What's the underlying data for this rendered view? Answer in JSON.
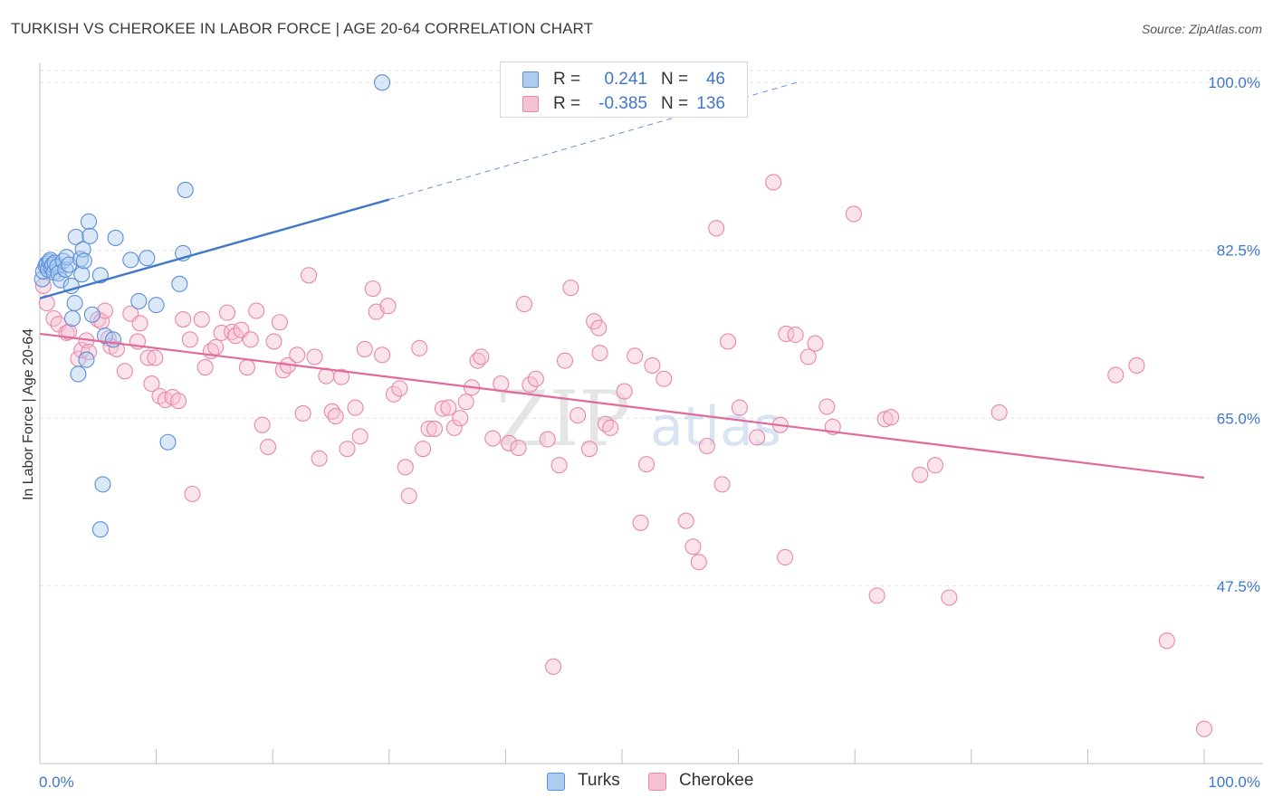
{
  "title": "TURKISH VS CHEROKEE IN LABOR FORCE | AGE 20-64 CORRELATION CHART",
  "source": "Source: ZipAtlas.com",
  "legend_top": [
    {
      "name": "Turks",
      "r_label": "R =",
      "r_value": "0.241",
      "n_label": "N =",
      "n_value": "46",
      "fill": "#aecbf0",
      "stroke": "#5b8fd8"
    },
    {
      "name": "Cherokee",
      "r_label": "R =",
      "r_value": "-0.385",
      "n_label": "N =",
      "n_value": "136",
      "fill": "#f6c1d2",
      "stroke": "#e888a8"
    }
  ],
  "legend_bottom": [
    {
      "label": "Turks",
      "fill": "#aecbf0",
      "stroke": "#5b8fd8"
    },
    {
      "label": "Cherokee",
      "fill": "#f6c1d2",
      "stroke": "#e888a8"
    }
  ],
  "watermark": {
    "zip": "ZIP",
    "atlas": "atlas"
  },
  "colors": {
    "turks": "#3f78c8",
    "cherokee": "#e26a98",
    "axis_text": "#3f78c8"
  },
  "chart_data": {
    "type": "scatter",
    "title": "TURKISH VS CHEROKEE IN LABOR FORCE | AGE 20-64 CORRELATION CHART",
    "xlabel": "",
    "ylabel": "In Labor Force | Age 20-64",
    "xlim": [
      0,
      100
    ],
    "ylim": [
      30.5,
      102
    ],
    "x_tick_labels": [
      "0.0%",
      "100.0%"
    ],
    "y_ticks": [
      47.5,
      65.0,
      82.5,
      100.0
    ],
    "y_tick_labels": [
      "47.5%",
      "65.0%",
      "82.5%",
      "100.0%"
    ],
    "grid": true,
    "legend_placement": "top-center",
    "series": [
      {
        "name": "Turks",
        "color": "#5b8fd8",
        "trend": {
          "x0": 0,
          "y0": 77.5,
          "x1": 30,
          "y1": 87.8,
          "dash_to_x": 65,
          "dash_to_y": 100.0
        },
        "points": [
          [
            0.2,
            79.5
          ],
          [
            0.3,
            80.3
          ],
          [
            0.5,
            80.9
          ],
          [
            0.6,
            81.1
          ],
          [
            0.7,
            80.5
          ],
          [
            0.8,
            81.3
          ],
          [
            0.9,
            81.5
          ],
          [
            1.0,
            80.7
          ],
          [
            1.1,
            81.0
          ],
          [
            1.2,
            80.2
          ],
          [
            1.3,
            81.2
          ],
          [
            1.5,
            80.8
          ],
          [
            1.6,
            80.1
          ],
          [
            1.8,
            79.4
          ],
          [
            2.0,
            81.4
          ],
          [
            2.2,
            80.5
          ],
          [
            2.3,
            81.8
          ],
          [
            2.5,
            81.0
          ],
          [
            2.7,
            78.8
          ],
          [
            2.8,
            75.4
          ],
          [
            3.0,
            77.0
          ],
          [
            3.1,
            83.9
          ],
          [
            3.3,
            69.6
          ],
          [
            3.5,
            81.6
          ],
          [
            3.6,
            80.0
          ],
          [
            3.7,
            82.6
          ],
          [
            3.8,
            81.4
          ],
          [
            4.0,
            71.1
          ],
          [
            4.2,
            85.5
          ],
          [
            4.3,
            84.0
          ],
          [
            4.5,
            75.8
          ],
          [
            5.2,
            79.9
          ],
          [
            5.4,
            58.1
          ],
          [
            5.2,
            53.4
          ],
          [
            5.6,
            73.6
          ],
          [
            6.3,
            73.2
          ],
          [
            6.5,
            83.8
          ],
          [
            7.8,
            81.5
          ],
          [
            8.5,
            77.2
          ],
          [
            9.2,
            81.7
          ],
          [
            10.0,
            76.8
          ],
          [
            11.0,
            62.5
          ],
          [
            12.0,
            79.0
          ],
          [
            12.3,
            82.2
          ],
          [
            12.5,
            88.8
          ],
          [
            29.4,
            100.0
          ]
        ]
      },
      {
        "name": "Cherokee",
        "color": "#e888a8",
        "trend": {
          "x0": 0,
          "y0": 73.8,
          "x1": 100,
          "y1": 58.8
        },
        "points": [
          [
            0.3,
            78.8
          ],
          [
            0.6,
            77.0
          ],
          [
            1.2,
            75.4
          ],
          [
            1.6,
            74.8
          ],
          [
            2.3,
            73.9
          ],
          [
            2.5,
            74.0
          ],
          [
            3.3,
            71.2
          ],
          [
            3.6,
            72.1
          ],
          [
            4.0,
            73.1
          ],
          [
            4.2,
            71.9
          ],
          [
            5.0,
            75.3
          ],
          [
            5.3,
            75.1
          ],
          [
            5.6,
            76.2
          ],
          [
            5.9,
            73.3
          ],
          [
            6.1,
            72.5
          ],
          [
            6.6,
            72.2
          ],
          [
            7.3,
            69.9
          ],
          [
            7.8,
            75.9
          ],
          [
            8.4,
            73.0
          ],
          [
            8.6,
            74.9
          ],
          [
            9.3,
            71.3
          ],
          [
            9.6,
            68.6
          ],
          [
            9.9,
            71.3
          ],
          [
            10.3,
            67.3
          ],
          [
            10.8,
            66.9
          ],
          [
            11.4,
            67.2
          ],
          [
            11.9,
            66.8
          ],
          [
            12.3,
            75.3
          ],
          [
            12.9,
            73.2
          ],
          [
            13.1,
            57.1
          ],
          [
            13.9,
            75.3
          ],
          [
            14.2,
            70.3
          ],
          [
            14.7,
            72.0
          ],
          [
            15.1,
            72.4
          ],
          [
            15.6,
            73.9
          ],
          [
            16.1,
            76.0
          ],
          [
            16.5,
            74.0
          ],
          [
            16.8,
            73.6
          ],
          [
            17.3,
            74.2
          ],
          [
            17.8,
            70.3
          ],
          [
            18.1,
            73.2
          ],
          [
            18.6,
            76.2
          ],
          [
            19.1,
            64.3
          ],
          [
            19.6,
            62.0
          ],
          [
            20.1,
            73.0
          ],
          [
            20.6,
            75.0
          ],
          [
            20.9,
            70.0
          ],
          [
            21.3,
            70.5
          ],
          [
            22.1,
            71.6
          ],
          [
            22.6,
            65.5
          ],
          [
            23.1,
            79.9
          ],
          [
            23.6,
            71.4
          ],
          [
            24.0,
            60.8
          ],
          [
            24.6,
            69.4
          ],
          [
            25.1,
            65.7
          ],
          [
            25.4,
            65.2
          ],
          [
            25.9,
            69.3
          ],
          [
            26.4,
            61.8
          ],
          [
            27.1,
            66.1
          ],
          [
            27.5,
            63.1
          ],
          [
            27.9,
            72.2
          ],
          [
            28.6,
            78.5
          ],
          [
            28.9,
            76.1
          ],
          [
            29.4,
            71.6
          ],
          [
            29.9,
            76.7
          ],
          [
            30.4,
            67.5
          ],
          [
            30.9,
            68.1
          ],
          [
            31.4,
            59.9
          ],
          [
            31.7,
            56.9
          ],
          [
            32.6,
            72.3
          ],
          [
            32.9,
            61.8
          ],
          [
            33.4,
            63.9
          ],
          [
            33.9,
            63.9
          ],
          [
            34.6,
            66.0
          ],
          [
            35.1,
            66.1
          ],
          [
            35.6,
            64.0
          ],
          [
            36.1,
            65.0
          ],
          [
            36.6,
            66.7
          ],
          [
            37.1,
            68.2
          ],
          [
            37.6,
            71.0
          ],
          [
            37.9,
            71.4
          ],
          [
            38.9,
            62.9
          ],
          [
            39.6,
            68.6
          ],
          [
            40.3,
            62.4
          ],
          [
            41.1,
            61.9
          ],
          [
            41.6,
            76.9
          ],
          [
            42.1,
            68.5
          ],
          [
            42.6,
            69.1
          ],
          [
            43.6,
            62.8
          ],
          [
            44.1,
            39.1
          ],
          [
            44.6,
            60.1
          ],
          [
            45.1,
            71.0
          ],
          [
            45.6,
            78.6
          ],
          [
            46.2,
            65.3
          ],
          [
            47.2,
            61.8
          ],
          [
            47.6,
            75.1
          ],
          [
            48.0,
            74.4
          ],
          [
            48.1,
            71.8
          ],
          [
            48.6,
            64.4
          ],
          [
            49.0,
            64.0
          ],
          [
            50.2,
            67.8
          ],
          [
            51.1,
            71.5
          ],
          [
            51.6,
            54.1
          ],
          [
            52.6,
            70.5
          ],
          [
            52.1,
            60.2
          ],
          [
            53.6,
            69.1
          ],
          [
            55.5,
            54.3
          ],
          [
            56.1,
            51.6
          ],
          [
            56.6,
            50.0
          ],
          [
            57.3,
            62.1
          ],
          [
            58.1,
            84.8
          ],
          [
            58.6,
            58.1
          ],
          [
            59.1,
            73.0
          ],
          [
            60.1,
            66.1
          ],
          [
            61.6,
            63.0
          ],
          [
            63.0,
            89.6
          ],
          [
            63.6,
            64.3
          ],
          [
            64.1,
            73.8
          ],
          [
            64.9,
            73.7
          ],
          [
            66.0,
            71.4
          ],
          [
            66.6,
            72.8
          ],
          [
            67.6,
            66.2
          ],
          [
            68.1,
            64.1
          ],
          [
            69.9,
            86.3
          ],
          [
            71.9,
            46.5
          ],
          [
            72.6,
            64.9
          ],
          [
            73.1,
            65.1
          ],
          [
            75.6,
            59.1
          ],
          [
            76.9,
            60.1
          ],
          [
            78.1,
            46.3
          ],
          [
            82.4,
            65.6
          ],
          [
            92.4,
            69.5
          ],
          [
            94.2,
            70.5
          ],
          [
            96.8,
            41.8
          ],
          [
            100.0,
            32.6
          ],
          [
            64.0,
            50.5
          ]
        ]
      }
    ]
  }
}
